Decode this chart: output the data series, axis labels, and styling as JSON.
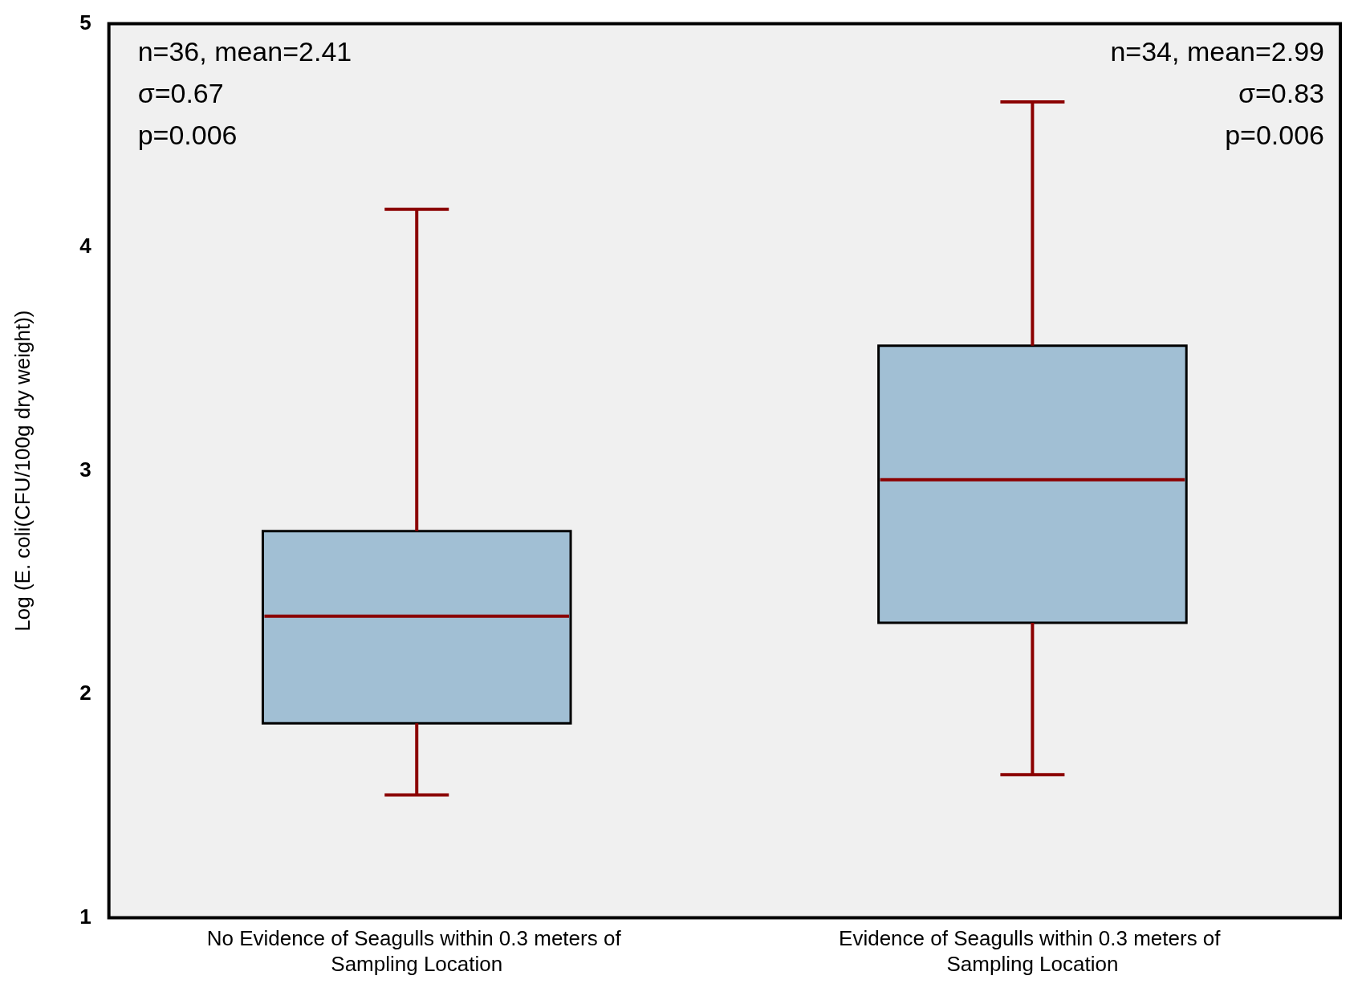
{
  "chart_data": {
    "type": "box",
    "ylabel": "Log (E. coli(CFU/100g dry weight))",
    "categories": [
      "No Evidence of Seagulls within 0.3 meters of  Sampling Location",
      "Evidence of Seagulls within 0.3 meters of  Sampling Location"
    ],
    "series": [
      {
        "color": "#a1bfd4",
        "boxes": [
          {
            "low": 1.55,
            "q1": 1.87,
            "median": 2.35,
            "q3": 2.73,
            "high": 4.17
          },
          {
            "low": 1.64,
            "q1": 2.32,
            "median": 2.96,
            "q3": 3.56,
            "high": 4.65
          }
        ]
      }
    ],
    "ylim": [
      1,
      5
    ],
    "yticks": [
      1,
      2,
      3,
      4,
      5
    ],
    "annotations": [
      "n=36, mean=2.41",
      "σ=0.67",
      "p=0.006",
      "n=34, mean=2.99",
      "σ=0.83",
      "p=0.006"
    ]
  }
}
